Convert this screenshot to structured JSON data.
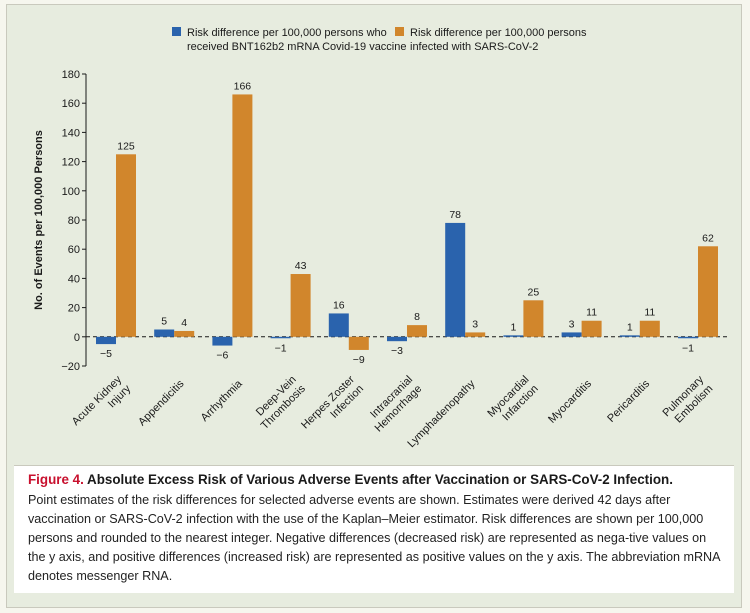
{
  "chart_data": {
    "type": "bar",
    "categories": [
      [
        "Acute Kidney",
        "Injury"
      ],
      [
        "Appendicitis"
      ],
      [
        "Arrhythmia"
      ],
      [
        "Deep-Vein",
        "Thrombosis"
      ],
      [
        "Herpes Zoster",
        "Infection"
      ],
      [
        "Intracranial",
        "Hemorrhage"
      ],
      [
        "Lymphadenopathy"
      ],
      [
        "Myocardial",
        "Infarction"
      ],
      [
        "Myocarditis"
      ],
      [
        "Pericarditis"
      ],
      [
        "Pulmonary",
        "Embolism"
      ]
    ],
    "series": [
      {
        "name": "Risk difference per 100,000 persons who received BNT162b2 mRNA Covid-19 vaccine",
        "legend_lines": [
          "Risk difference per 100,000 persons who",
          "received BNT162b2 mRNA Covid-19 vaccine"
        ],
        "color": "#2a63ad",
        "values": [
          -5,
          5,
          -6,
          -1,
          16,
          -3,
          78,
          1,
          3,
          1,
          -1
        ],
        "labels": [
          "−5",
          "5",
          "−6",
          "−1",
          "16",
          "−3",
          "78",
          "1",
          "3",
          "1",
          "−1"
        ]
      },
      {
        "name": "Risk difference per 100,000 persons infected with SARS-CoV-2",
        "legend_lines": [
          "Risk difference per 100,000 persons",
          "infected with SARS-CoV-2"
        ],
        "color": "#d1862c",
        "values": [
          125,
          4,
          166,
          43,
          -9,
          8,
          3,
          25,
          11,
          11,
          62
        ],
        "labels": [
          "125",
          "4",
          "166",
          "43",
          "−9",
          "8",
          "3",
          "25",
          "11",
          "11",
          "62"
        ]
      }
    ],
    "ylabel": "No. of Events per 100,000 Persons",
    "ylim": [
      -20,
      180
    ],
    "yticks": [
      -20,
      0,
      20,
      40,
      60,
      80,
      100,
      120,
      140,
      160,
      180
    ],
    "ytick_labels": [
      "−20",
      "0",
      "20",
      "40",
      "60",
      "80",
      "100",
      "120",
      "140",
      "160",
      "180"
    ],
    "zero_line": "dashed",
    "legend_position": "top"
  },
  "caption": {
    "figure_label": "Figure 4.",
    "title": "Absolute Excess Risk of Various Adverse Events after Vaccination or SARS-CoV-2 Infection.",
    "text": "Point estimates of the risk differences for selected adverse events are shown. Estimates were derived 42 days after vaccination or SARS-CoV-2 infection with the use of the Kaplan–Meier estimator. Risk differences are shown per 100,000 persons and rounded to the nearest integer. Negative differences (decreased risk) are represented as nega-tive values on the y axis, and positive differences (increased risk) are represented as positive values on the y axis. The abbreviation mRNA denotes messenger RNA."
  },
  "colors": {
    "background": "#e7ecdf",
    "caption_background": "#ffffff",
    "figure_label": "#c8102e"
  }
}
